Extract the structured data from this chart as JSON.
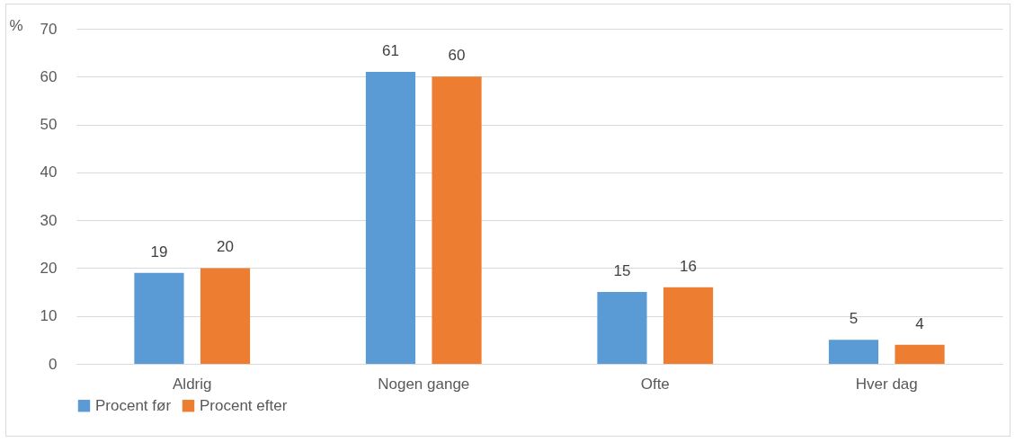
{
  "chart_data": {
    "type": "bar",
    "ylabel": "%",
    "categories": [
      "Aldrig",
      "Nogen gange",
      "Ofte",
      "Hver dag"
    ],
    "series": [
      {
        "name": "Procent før",
        "color": "#5b9bd5",
        "values": [
          19,
          61,
          15,
          5
        ]
      },
      {
        "name": "Procent efter",
        "color": "#ed7d31",
        "values": [
          20,
          60,
          16,
          4
        ]
      }
    ],
    "ylim": [
      0,
      70
    ],
    "yticks": [
      0,
      10,
      20,
      30,
      40,
      50,
      60,
      70
    ],
    "grid": "y",
    "legend": "bottom",
    "data_labels": true
  }
}
